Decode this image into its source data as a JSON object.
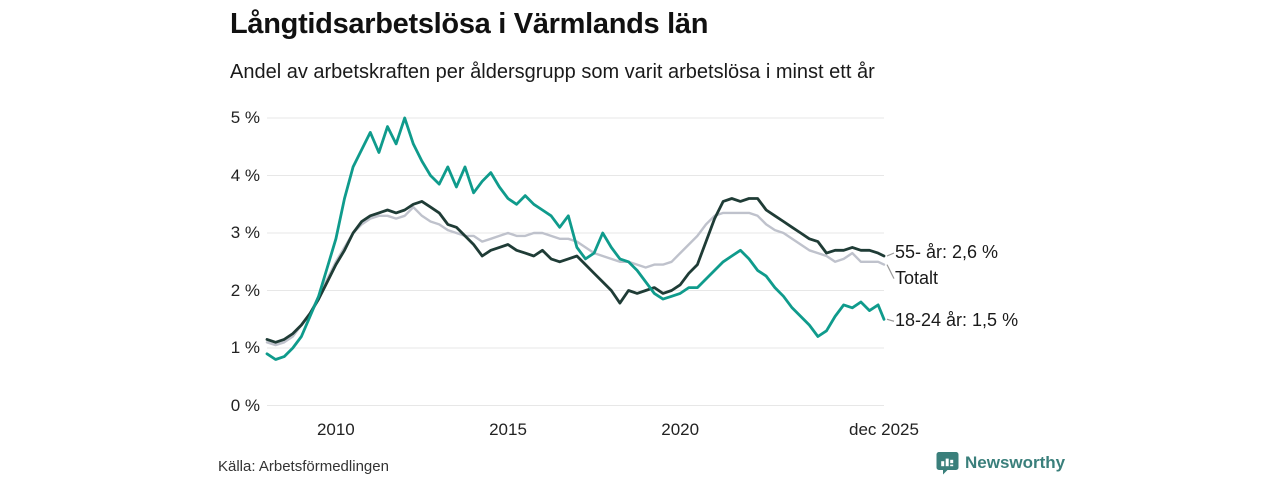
{
  "header": {
    "title": "Långtidsarbetslösa i Värmlands län",
    "subtitle": "Andel av arbetskraften per åldersgrupp som varit arbetslösa i minst ett år"
  },
  "footer": {
    "source": "Källa: Arbetsförmedlingen",
    "brand": "Newsworthy"
  },
  "colors": {
    "teal": "#0f9b8c",
    "dark": "#1f3c36",
    "gray": "#bfc2cc",
    "grid": "#e7e7e7",
    "connector": "#999999",
    "brand_teal": "#3a7f7b"
  },
  "chart_data": {
    "type": "line",
    "title": "Långtidsarbetslösa i Värmlands län",
    "xlabel": "",
    "ylabel": "",
    "grid": "horizontal",
    "legend_position": "right-end-labels",
    "xlim": [
      2008,
      2025.92
    ],
    "ylim": [
      0,
      5
    ],
    "y_ticks": [
      {
        "label": "0 %",
        "value": 0
      },
      {
        "label": "1 %",
        "value": 1
      },
      {
        "label": "2 %",
        "value": 2
      },
      {
        "label": "3 %",
        "value": 3
      },
      {
        "label": "4 %",
        "value": 4
      },
      {
        "label": "5 %",
        "value": 5
      }
    ],
    "x_ticks": [
      {
        "label": "2010",
        "year": 2010
      },
      {
        "label": "2015",
        "year": 2015
      },
      {
        "label": "2020",
        "year": 2020
      },
      {
        "label": "dec 2025",
        "year": 2025.92
      }
    ],
    "x": [
      2008,
      2008.25,
      2008.5,
      2008.75,
      2009,
      2009.25,
      2009.5,
      2009.75,
      2010,
      2010.25,
      2010.5,
      2010.75,
      2011,
      2011.25,
      2011.5,
      2011.75,
      2012,
      2012.25,
      2012.5,
      2012.75,
      2013,
      2013.25,
      2013.5,
      2013.75,
      2014,
      2014.25,
      2014.5,
      2014.75,
      2015,
      2015.25,
      2015.5,
      2015.75,
      2016,
      2016.25,
      2016.5,
      2016.75,
      2017,
      2017.25,
      2017.5,
      2017.75,
      2018,
      2018.25,
      2018.5,
      2018.75,
      2019,
      2019.25,
      2019.5,
      2019.75,
      2020,
      2020.25,
      2020.5,
      2020.75,
      2021,
      2021.25,
      2021.5,
      2021.75,
      2022,
      2022.25,
      2022.5,
      2022.75,
      2023,
      2023.25,
      2023.5,
      2023.75,
      2024,
      2024.25,
      2024.5,
      2024.75,
      2025,
      2025.25,
      2025.5,
      2025.75,
      2025.92
    ],
    "series": [
      {
        "name": "55- år",
        "end_label": "55- år: 2,6 %",
        "end_value_text": "2,6 %",
        "color_key": "dark",
        "values": [
          1.15,
          1.1,
          1.15,
          1.25,
          1.4,
          1.6,
          1.85,
          2.15,
          2.45,
          2.7,
          3.0,
          3.2,
          3.3,
          3.35,
          3.4,
          3.35,
          3.4,
          3.5,
          3.55,
          3.45,
          3.35,
          3.15,
          3.1,
          2.95,
          2.8,
          2.6,
          2.7,
          2.75,
          2.8,
          2.7,
          2.65,
          2.6,
          2.7,
          2.55,
          2.5,
          2.55,
          2.6,
          2.45,
          2.3,
          2.15,
          2.0,
          1.78,
          2.0,
          1.95,
          2.0,
          2.05,
          1.95,
          2.0,
          2.1,
          2.3,
          2.45,
          2.85,
          3.25,
          3.55,
          3.6,
          3.55,
          3.6,
          3.6,
          3.4,
          3.3,
          3.2,
          3.1,
          3.0,
          2.9,
          2.85,
          2.65,
          2.7,
          2.7,
          2.75,
          2.7,
          2.7,
          2.65,
          2.6
        ]
      },
      {
        "name": "Totalt",
        "end_label": "Totalt",
        "end_value_text": "",
        "color_key": "gray",
        "values": [
          1.1,
          1.05,
          1.1,
          1.2,
          1.4,
          1.6,
          1.9,
          2.2,
          2.5,
          2.75,
          3.0,
          3.15,
          3.25,
          3.3,
          3.3,
          3.25,
          3.3,
          3.45,
          3.3,
          3.2,
          3.15,
          3.05,
          3.0,
          2.95,
          2.95,
          2.85,
          2.9,
          2.95,
          3.0,
          2.95,
          2.95,
          3.0,
          3.0,
          2.95,
          2.9,
          2.9,
          2.85,
          2.75,
          2.65,
          2.6,
          2.55,
          2.5,
          2.5,
          2.45,
          2.4,
          2.45,
          2.45,
          2.5,
          2.65,
          2.8,
          2.95,
          3.15,
          3.3,
          3.35,
          3.35,
          3.35,
          3.35,
          3.3,
          3.15,
          3.05,
          3.0,
          2.9,
          2.8,
          2.7,
          2.65,
          2.6,
          2.5,
          2.55,
          2.65,
          2.5,
          2.5,
          2.5,
          2.45
        ]
      },
      {
        "name": "18-24 år",
        "end_label": "18-24 år: 1,5 %",
        "end_value_text": "1,5 %",
        "color_key": "teal",
        "values": [
          0.9,
          0.8,
          0.85,
          1.0,
          1.2,
          1.55,
          1.9,
          2.4,
          2.9,
          3.6,
          4.15,
          4.45,
          4.75,
          4.4,
          4.85,
          4.55,
          5.0,
          4.55,
          4.25,
          4.0,
          3.85,
          4.15,
          3.8,
          4.15,
          3.7,
          3.9,
          4.05,
          3.8,
          3.6,
          3.5,
          3.65,
          3.5,
          3.4,
          3.3,
          3.1,
          3.3,
          2.75,
          2.55,
          2.65,
          3.0,
          2.75,
          2.55,
          2.5,
          2.35,
          2.15,
          1.95,
          1.85,
          1.9,
          1.95,
          2.05,
          2.05,
          2.2,
          2.35,
          2.5,
          2.6,
          2.7,
          2.55,
          2.35,
          2.25,
          2.05,
          1.9,
          1.7,
          1.55,
          1.4,
          1.2,
          1.3,
          1.55,
          1.75,
          1.7,
          1.8,
          1.65,
          1.75,
          1.5
        ]
      }
    ]
  }
}
